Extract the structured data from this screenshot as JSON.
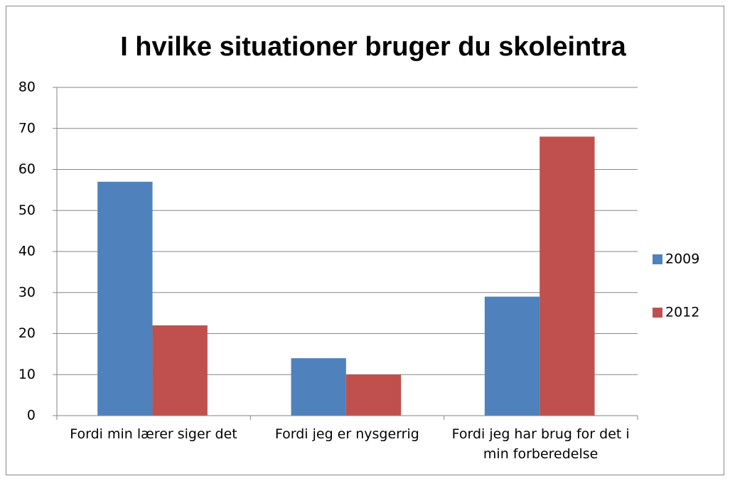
{
  "chart_data": {
    "type": "bar",
    "title": "I hvilke situationer bruger du skoleintra",
    "categories": [
      "Fordi min lærer siger det",
      "Fordi jeg er nysgerrig",
      "Fordi jeg har brug for det i min forberedelse"
    ],
    "series": [
      {
        "name": "2009",
        "color": "#4f81bd",
        "values": [
          57,
          14,
          29
        ]
      },
      {
        "name": "2012",
        "color": "#c0504d",
        "values": [
          22,
          10,
          68
        ]
      }
    ],
    "ylim": [
      0,
      80
    ],
    "yticks": [
      0,
      10,
      20,
      30,
      40,
      50,
      60,
      70,
      80
    ],
    "grid": true,
    "legend": "right"
  }
}
